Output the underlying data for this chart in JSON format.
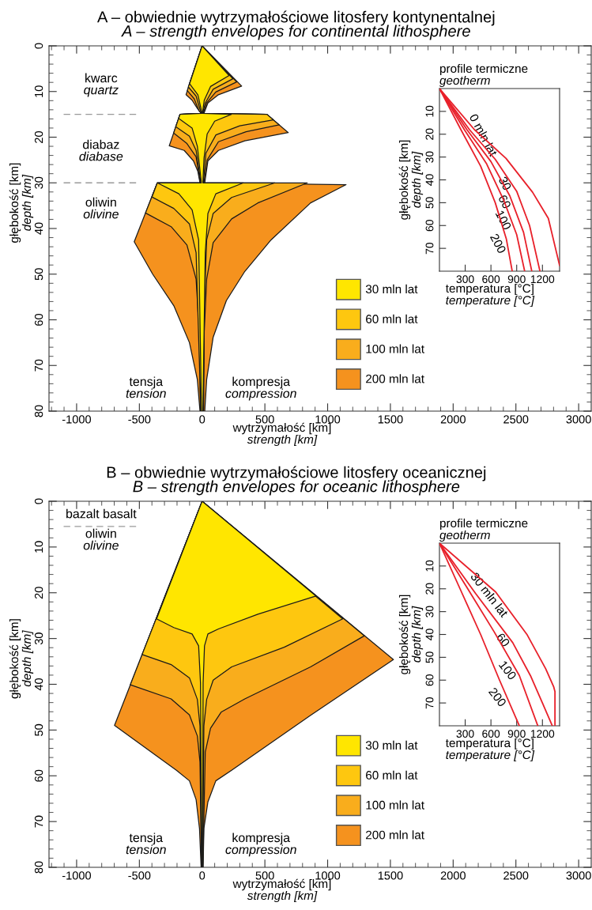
{
  "chart_data": [
    {
      "type": "area",
      "title": "A – obwiednie wytrzymałościowe litosfery kontynentalnej",
      "subtitle": "A – strength envelopes for continental lithosphere",
      "xlabel": "wytrzymałość [km]\nstrength [km]",
      "ylabel": "głębokość [km]\ndepth [km]",
      "legend": "right",
      "xlim": [
        -1220,
        3100
      ],
      "ylim": [
        80,
        0
      ],
      "xticks": [
        {
          "value": -1200,
          "label": null
        },
        {
          "value": -1100,
          "label": null
        },
        -1000,
        {
          "value": -900,
          "label": null
        },
        {
          "value": -800,
          "label": null
        },
        {
          "value": -700,
          "label": null
        },
        {
          "value": -600,
          "label": null
        },
        -500,
        {
          "value": -400,
          "label": null
        },
        {
          "value": -300,
          "label": null
        },
        {
          "value": -200,
          "label": null
        },
        {
          "value": -100,
          "label": null
        },
        0,
        {
          "value": 100,
          "label": null
        },
        {
          "value": 200,
          "label": null
        },
        {
          "value": 300,
          "label": null
        },
        {
          "value": 400,
          "label": null
        },
        500,
        {
          "value": 600,
          "label": null
        },
        {
          "value": 700,
          "label": null
        },
        {
          "value": 800,
          "label": null
        },
        {
          "value": 900,
          "label": null
        },
        1000,
        {
          "value": 1100,
          "label": null
        },
        {
          "value": 1200,
          "label": null
        },
        {
          "value": 1300,
          "label": null
        },
        {
          "value": 1400,
          "label": null
        },
        1500,
        {
          "value": 1600,
          "label": null
        },
        {
          "value": 1700,
          "label": null
        },
        {
          "value": 1800,
          "label": null
        },
        {
          "value": 1900,
          "label": null
        },
        2000,
        {
          "value": 2100,
          "label": null
        },
        {
          "value": 2200,
          "label": null
        },
        {
          "value": 2300,
          "label": null
        },
        {
          "value": 2400,
          "label": null
        },
        2500,
        {
          "value": 2600,
          "label": null
        },
        {
          "value": 2700,
          "label": null
        },
        {
          "value": 2800,
          "label": null
        },
        {
          "value": 2900,
          "label": null
        },
        3000
      ],
      "yticks": [
        0,
        {
          "value": 2,
          "label": null
        },
        {
          "value": 4,
          "label": null
        },
        {
          "value": 6,
          "label": null
        },
        {
          "value": 8,
          "label": null
        },
        10,
        {
          "value": 12,
          "label": null
        },
        {
          "value": 14,
          "label": null
        },
        {
          "value": 16,
          "label": null
        },
        {
          "value": 18,
          "label": null
        },
        20,
        {
          "value": 22,
          "label": null
        },
        {
          "value": 24,
          "label": null
        },
        {
          "value": 26,
          "label": null
        },
        {
          "value": 28,
          "label": null
        },
        30,
        {
          "value": 32,
          "label": null
        },
        {
          "value": 34,
          "label": null
        },
        {
          "value": 36,
          "label": null
        },
        {
          "value": 38,
          "label": null
        },
        40,
        {
          "value": 42,
          "label": null
        },
        {
          "value": 44,
          "label": null
        },
        {
          "value": 46,
          "label": null
        },
        {
          "value": 48,
          "label": null
        },
        50,
        {
          "value": 52,
          "label": null
        },
        {
          "value": 54,
          "label": null
        },
        {
          "value": 56,
          "label": null
        },
        {
          "value": 58,
          "label": null
        },
        60,
        {
          "value": 62,
          "label": null
        },
        {
          "value": 64,
          "label": null
        },
        {
          "value": 66,
          "label": null
        },
        {
          "value": 68,
          "label": null
        },
        70,
        {
          "value": 72,
          "label": null
        },
        {
          "value": 74,
          "label": null
        },
        {
          "value": 76,
          "label": null
        },
        {
          "value": 78,
          "label": null
        },
        80
      ],
      "ref_lines": [
        {
          "axis": "y",
          "value": 15,
          "line_style": "dashed",
          "color": "#999999"
        },
        {
          "axis": "y",
          "value": 30,
          "line_style": "dashed",
          "color": "#999999"
        }
      ],
      "annotations": [
        "kwarc\nquartz",
        "diabaz\ndiabase",
        "oliwin\nolivine",
        "tensja\ntension",
        "kompresja\ncompression"
      ],
      "series": [
        {
          "name": "30 mln lat",
          "color": "#ffe600",
          "x": [
            0,
            215,
            67,
            17,
            2,
            233,
            100,
            40,
            15,
            6,
            329,
            109,
            46,
            25,
            6,
            -5,
            -28,
            -80,
            -185,
            -357,
            -6,
            -38,
            -80,
            -187,
            -176,
            -1,
            -10,
            -34,
            -100
          ],
          "values": [
            0,
            6.5,
            8.9,
            11.9,
            14.8,
            15,
            16.5,
            19.3,
            24.6,
            30,
            30,
            32.4,
            36.7,
            45.3,
            80,
            80,
            42.5,
            35.9,
            32.4,
            30,
            30,
            22.0,
            18.0,
            15.9,
            15,
            14.8,
            13.6,
            10.7,
            8.3
          ]
        },
        {
          "name": "60 mln lat",
          "color": "#fec70f",
          "x": [
            0,
            245,
            88,
            25,
            4,
            516,
            567,
            300,
            110,
            30,
            10,
            580,
            235,
            88,
            36,
            17,
            8,
            -10,
            -48,
            -101,
            -226,
            -400,
            -357,
            -10,
            -48,
            -101,
            -210,
            -176,
            -2,
            -17,
            -48,
            -110
          ],
          "values": [
            0,
            7.2,
            9.5,
            12.5,
            14.8,
            15,
            16.2,
            17.5,
            19.5,
            23.5,
            30,
            30,
            33.2,
            36.7,
            42.5,
            56.9,
            80,
            80,
            45.3,
            39.0,
            35.6,
            33.1,
            30,
            30,
            22.9,
            19.8,
            17.7,
            15,
            14.8,
            13.9,
            11.0,
            9.0
          ]
        },
        {
          "name": "100 mln lat",
          "color": "#f9ad1c",
          "x": [
            0,
            275,
            109,
            36,
            8,
            516,
            614,
            350,
            130,
            40,
            14,
            838,
            444,
            235,
            88,
            36,
            17,
            12,
            -13,
            -23,
            -48,
            -121,
            -247,
            -451,
            -357,
            -15,
            -48,
            -121,
            -227,
            -176,
            -4,
            -25,
            -63,
            -118
          ],
          "values": [
            0,
            7.9,
            10.1,
            12.5,
            14.8,
            15,
            17.3,
            18.8,
            21,
            25,
            30,
            30,
            34.4,
            37.9,
            43.1,
            51.1,
            62.6,
            80,
            80,
            62.6,
            51.1,
            43.6,
            39.6,
            36.6,
            30,
            30,
            24.3,
            21.4,
            19.1,
            15,
            14.8,
            14.2,
            11.6,
            9.8
          ]
        },
        {
          "name": "200 mln lat",
          "color": "#f5921e",
          "x": [
            0,
            315,
            130,
            46,
            14,
            516,
            686,
            340,
            130,
            46,
            21,
            1147,
            864,
            549,
            340,
            193,
            88,
            36,
            21,
            -17,
            -38,
            -101,
            -226,
            -394,
            -541,
            -357,
            -17,
            -34,
            -69,
            -143,
            -262,
            -176,
            -8,
            -38,
            -80,
            -128
          ],
          "values": [
            0,
            8.8,
            10.7,
            12.5,
            14.8,
            15,
            19,
            20.8,
            22.9,
            25.2,
            30,
            30.4,
            34.4,
            42.5,
            49.4,
            55.8,
            63.8,
            73.1,
            80,
            80,
            73.1,
            65.0,
            56.9,
            50.0,
            42.9,
            30,
            30,
            27.5,
            25.2,
            22.9,
            21.9,
            15,
            14.8,
            13.7,
            11.9,
            10.7
          ]
        }
      ]
    },
    {
      "type": "line",
      "title": "profile termiczne",
      "subtitle": "geotherm",
      "xlabel": "temperatura [°C]\ntemperature [°C]",
      "ylabel": "głębokość [km]\ndepth [km]",
      "xlim": [
        0,
        1400
      ],
      "ylim": [
        80,
        0
      ],
      "xticks": [
        300,
        600,
        900,
        1200
      ],
      "yticks": [
        10,
        20,
        30,
        40,
        50,
        60,
        70
      ],
      "annotations": [
        {
          "text": "0 mln lat",
          "x": 700,
          "y": 28
        },
        {
          "text": "30",
          "x": 864,
          "y": 43
        },
        {
          "text": "60",
          "x": 860,
          "y": 51
        },
        {
          "text": "100",
          "x": 863,
          "y": 60.3
        },
        {
          "text": "200",
          "x": 802,
          "y": 70.6
        }
      ],
      "series": [
        {
          "color": "#e8202a",
          "x": [
            0,
            408,
            776,
            1085,
            1269,
            1400
          ],
          "values": [
            0,
            18,
            30.6,
            45.4,
            56.9,
            77.5
          ]
        },
        {
          "color": "#e8202a",
          "x": [
            0,
            350,
            650,
            900,
            1050,
            1171
          ],
          "values": [
            0,
            18,
            31,
            45,
            60,
            80
          ]
        },
        {
          "color": "#e8202a",
          "x": [
            0,
            320,
            600,
            820,
            980,
            1076
          ],
          "values": [
            0,
            18,
            32,
            47,
            63,
            80
          ]
        },
        {
          "color": "#e8202a",
          "x": [
            0,
            290,
            550,
            750,
            900,
            993
          ],
          "values": [
            0,
            18,
            33,
            49,
            64,
            80
          ]
        },
        {
          "color": "#e8202a",
          "x": [
            0,
            250,
            480,
            650,
            780,
            848
          ],
          "values": [
            0,
            18,
            34,
            50,
            66,
            80
          ]
        }
      ]
    },
    {
      "type": "area",
      "title": "B – obwiednie wytrzymałościowe litosfery oceanicznej",
      "subtitle": "B – strength envelopes for oceanic lithosphere",
      "xlabel": "wytrzymałość [km]\nstrength [km]",
      "ylabel": "głębokość [km]\ndepth [km]",
      "legend": "right",
      "xlim": [
        -1220,
        3100
      ],
      "ylim": [
        80,
        0
      ],
      "xticks": [
        {
          "value": -1200,
          "label": null
        },
        {
          "value": -1100,
          "label": null
        },
        -1000,
        {
          "value": -900,
          "label": null
        },
        {
          "value": -800,
          "label": null
        },
        {
          "value": -700,
          "label": null
        },
        {
          "value": -600,
          "label": null
        },
        -500,
        {
          "value": -400,
          "label": null
        },
        {
          "value": -300,
          "label": null
        },
        {
          "value": -200,
          "label": null
        },
        {
          "value": -100,
          "label": null
        },
        0,
        {
          "value": 100,
          "label": null
        },
        {
          "value": 200,
          "label": null
        },
        {
          "value": 300,
          "label": null
        },
        {
          "value": 400,
          "label": null
        },
        500,
        {
          "value": 600,
          "label": null
        },
        {
          "value": 700,
          "label": null
        },
        {
          "value": 800,
          "label": null
        },
        {
          "value": 900,
          "label": null
        },
        1000,
        {
          "value": 1100,
          "label": null
        },
        {
          "value": 1200,
          "label": null
        },
        {
          "value": 1300,
          "label": null
        },
        {
          "value": 1400,
          "label": null
        },
        1500,
        {
          "value": 1600,
          "label": null
        },
        {
          "value": 1700,
          "label": null
        },
        {
          "value": 1800,
          "label": null
        },
        {
          "value": 1900,
          "label": null
        },
        2000,
        {
          "value": 2100,
          "label": null
        },
        {
          "value": 2200,
          "label": null
        },
        {
          "value": 2300,
          "label": null
        },
        {
          "value": 2400,
          "label": null
        },
        2500,
        {
          "value": 2600,
          "label": null
        },
        {
          "value": 2700,
          "label": null
        },
        {
          "value": 2800,
          "label": null
        },
        {
          "value": 2900,
          "label": null
        },
        3000
      ],
      "yticks": [
        0,
        {
          "value": 2,
          "label": null
        },
        {
          "value": 4,
          "label": null
        },
        {
          "value": 6,
          "label": null
        },
        {
          "value": 8,
          "label": null
        },
        10,
        {
          "value": 12,
          "label": null
        },
        {
          "value": 14,
          "label": null
        },
        {
          "value": 16,
          "label": null
        },
        {
          "value": 18,
          "label": null
        },
        20,
        {
          "value": 22,
          "label": null
        },
        {
          "value": 24,
          "label": null
        },
        {
          "value": 26,
          "label": null
        },
        {
          "value": 28,
          "label": null
        },
        30,
        {
          "value": 32,
          "label": null
        },
        {
          "value": 34,
          "label": null
        },
        {
          "value": 36,
          "label": null
        },
        {
          "value": 38,
          "label": null
        },
        40,
        {
          "value": 42,
          "label": null
        },
        {
          "value": 44,
          "label": null
        },
        {
          "value": 46,
          "label": null
        },
        {
          "value": 48,
          "label": null
        },
        50,
        {
          "value": 52,
          "label": null
        },
        {
          "value": 54,
          "label": null
        },
        {
          "value": 56,
          "label": null
        },
        {
          "value": 58,
          "label": null
        },
        60,
        {
          "value": 62,
          "label": null
        },
        {
          "value": 64,
          "label": null
        },
        {
          "value": 66,
          "label": null
        },
        {
          "value": 68,
          "label": null
        },
        70,
        {
          "value": 72,
          "label": null
        },
        {
          "value": 74,
          "label": null
        },
        {
          "value": 76,
          "label": null
        },
        {
          "value": 78,
          "label": null
        },
        80
      ],
      "ref_lines": [
        {
          "axis": "y",
          "value": 5.5,
          "line_style": "dashed",
          "color": "#999999"
        }
      ],
      "annotations": [
        "bazalt basalt",
        "oliwin\nolivine",
        "tensja\ntension",
        "kompresja\ncompression"
      ],
      "series": [
        {
          "name": "30 mln lat",
          "color": "#ffe600",
          "x": [
            0,
            906,
            444,
            130,
            46,
            19,
            8,
            2,
            -3,
            -13,
            -28,
            -80,
            -226,
            -363
          ],
          "values": [
            0,
            20.7,
            24.7,
            27.9,
            29.0,
            31.6,
            39.7,
            80,
            80,
            39.7,
            31.6,
            29.0,
            27.6,
            25.7
          ]
        },
        {
          "name": "60 mln lat",
          "color": "#fec70f",
          "x": [
            0,
            1120,
            654,
            235,
            88,
            36,
            14,
            4,
            -4,
            -17,
            -38,
            -101,
            -247,
            -478
          ],
          "values": [
            0,
            25.7,
            31.9,
            36.2,
            39.1,
            43.3,
            49.1,
            80,
            80,
            49.1,
            43.3,
            38.6,
            35.7,
            33.5
          ]
        },
        {
          "name": "100 mln lat",
          "color": "#f9ad1c",
          "x": [
            0,
            1293,
            864,
            340,
            151,
            67,
            25,
            6,
            -5,
            -17,
            -38,
            -101,
            -247,
            -572
          ],
          "values": [
            0,
            29.4,
            36.2,
            43.2,
            46.1,
            49.6,
            54.8,
            80,
            80,
            57.0,
            51.3,
            46.7,
            43.2,
            40.1
          ]
        },
        {
          "name": "200 mln lat",
          "color": "#f5921e",
          "x": [
            0,
            1524,
            864,
            235,
            109,
            46,
            14,
            8,
            -8,
            -21,
            -48,
            -101,
            -205,
            -698
          ],
          "values": [
            0,
            34.6,
            46.8,
            58.8,
            61.1,
            65.7,
            71.5,
            80,
            80,
            71.5,
            65.2,
            61.1,
            58.8,
            49.0
          ]
        }
      ]
    },
    {
      "type": "line",
      "title": "profile termiczne",
      "subtitle": "geotherm",
      "xlabel": "temperatura [°C]\ntemperature [°C]",
      "ylabel": "głębokość [km]\ndepth [km]",
      "xlim": [
        0,
        1400
      ],
      "ylim": [
        80,
        0
      ],
      "xticks": [
        300,
        600,
        900,
        1200
      ],
      "yticks": [
        10,
        20,
        30,
        40,
        50,
        60,
        70
      ],
      "annotations": [
        {
          "text": "30 mln lat",
          "x": 833,
          "y": 30.5
        },
        {
          "text": "60",
          "x": 854,
          "y": 43.6
        },
        {
          "text": "100",
          "x": 931,
          "y": 58
        },
        {
          "text": "200",
          "x": 813,
          "y": 69.8
        }
      ],
      "series": [
        {
          "color": "#e8202a",
          "x": [
            0,
            655,
            1023,
            1238,
            1332,
            1346,
            1346
          ],
          "values": [
            0,
            21.4,
            40.2,
            55,
            63,
            65,
            80
          ]
        },
        {
          "color": "#e8202a",
          "x": [
            0,
            420,
            854,
            1060,
            1200,
            1315
          ],
          "values": [
            0,
            22,
            43.6,
            58,
            70,
            80
          ]
        },
        {
          "color": "#e8202a",
          "x": [
            0,
            330,
            640,
            931,
            1146
          ],
          "values": [
            0,
            20,
            39,
            58,
            80
          ]
        },
        {
          "color": "#e8202a",
          "x": [
            0,
            240,
            480,
            700,
            931
          ],
          "values": [
            0,
            20,
            40,
            60,
            80
          ]
        }
      ]
    }
  ]
}
